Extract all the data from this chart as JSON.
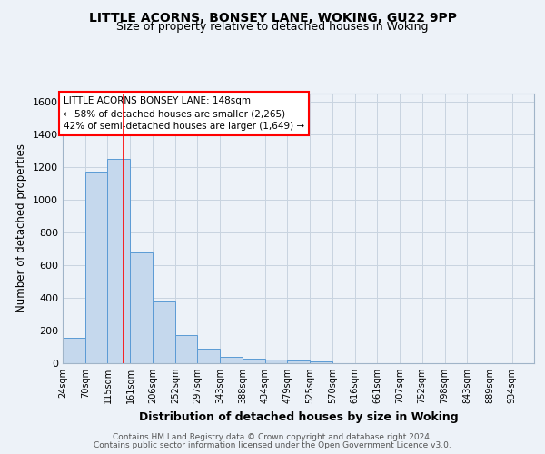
{
  "title1": "LITTLE ACORNS, BONSEY LANE, WOKING, GU22 9PP",
  "title2": "Size of property relative to detached houses in Woking",
  "xlabel": "Distribution of detached houses by size in Woking",
  "ylabel": "Number of detached properties",
  "footer1": "Contains HM Land Registry data © Crown copyright and database right 2024.",
  "footer2": "Contains public sector information licensed under the Open Government Licence v3.0.",
  "annotation_line1": "LITTLE ACORNS BONSEY LANE: 148sqm",
  "annotation_line2": "← 58% of detached houses are smaller (2,265)",
  "annotation_line3": "42% of semi-detached houses are larger (1,649) →",
  "property_size": 148,
  "bar_labels": [
    "24sqm",
    "70sqm",
    "115sqm",
    "161sqm",
    "206sqm",
    "252sqm",
    "297sqm",
    "343sqm",
    "388sqm",
    "434sqm",
    "479sqm",
    "525sqm",
    "570sqm",
    "616sqm",
    "661sqm",
    "707sqm",
    "752sqm",
    "798sqm",
    "843sqm",
    "889sqm",
    "934sqm"
  ],
  "bar_values": [
    155,
    1170,
    1250,
    675,
    375,
    170,
    90,
    38,
    28,
    20,
    15,
    13,
    0,
    0,
    0,
    0,
    0,
    0,
    0,
    0,
    0
  ],
  "bar_color": "#c5d8ed",
  "bar_edge_color": "#5b9bd5",
  "red_line_x": 148,
  "bin_edges": [
    24,
    70,
    115,
    161,
    206,
    252,
    297,
    343,
    388,
    434,
    479,
    525,
    570,
    616,
    661,
    707,
    752,
    798,
    843,
    889,
    934,
    979
  ],
  "ylim": [
    0,
    1650
  ],
  "yticks": [
    0,
    200,
    400,
    600,
    800,
    1000,
    1200,
    1400,
    1600
  ],
  "grid_color": "#c8d4e0",
  "bg_color": "#edf2f8",
  "plot_bg_color": "#edf2f8"
}
